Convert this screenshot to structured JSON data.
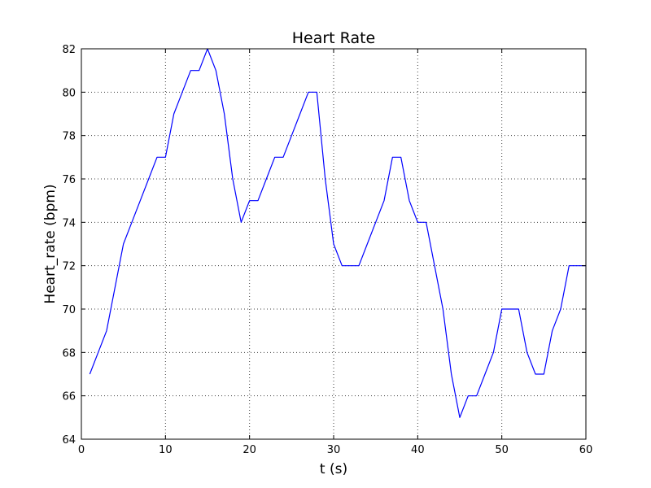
{
  "chart_data": {
    "type": "line",
    "title": "Heart Rate",
    "xlabel": "t (s)",
    "ylabel": "Heart_rate (bpm)",
    "xlim": [
      0,
      60
    ],
    "ylim": [
      64,
      82
    ],
    "xticks": [
      0,
      10,
      20,
      30,
      40,
      50,
      60
    ],
    "yticks": [
      64,
      66,
      68,
      70,
      72,
      74,
      76,
      78,
      80,
      82
    ],
    "grid": true,
    "series": [
      {
        "color": "#0000ff",
        "x": [
          1,
          2,
          3,
          4,
          5,
          6,
          7,
          8,
          9,
          10,
          11,
          12,
          13,
          14,
          15,
          16,
          17,
          18,
          19,
          20,
          21,
          22,
          23,
          24,
          25,
          26,
          27,
          28,
          29,
          30,
          31,
          32,
          33,
          34,
          35,
          36,
          37,
          38,
          39,
          40,
          41,
          42,
          43,
          44,
          45,
          46,
          47,
          48,
          49,
          50,
          51,
          52,
          53,
          54,
          55,
          56,
          57,
          58,
          59,
          60
        ],
        "y": [
          67,
          68,
          69,
          71,
          73,
          74,
          75,
          76,
          77,
          77,
          79,
          80,
          81,
          81,
          82,
          81,
          79,
          76,
          74,
          75,
          75,
          76,
          77,
          77,
          78,
          79,
          80,
          80,
          76,
          73,
          72,
          72,
          72,
          73,
          74,
          75,
          77,
          77,
          75,
          74,
          74,
          72,
          70,
          67,
          65,
          66,
          66,
          67,
          68,
          70,
          70,
          70,
          68,
          67,
          67,
          69,
          70,
          72,
          72,
          72
        ]
      }
    ]
  }
}
